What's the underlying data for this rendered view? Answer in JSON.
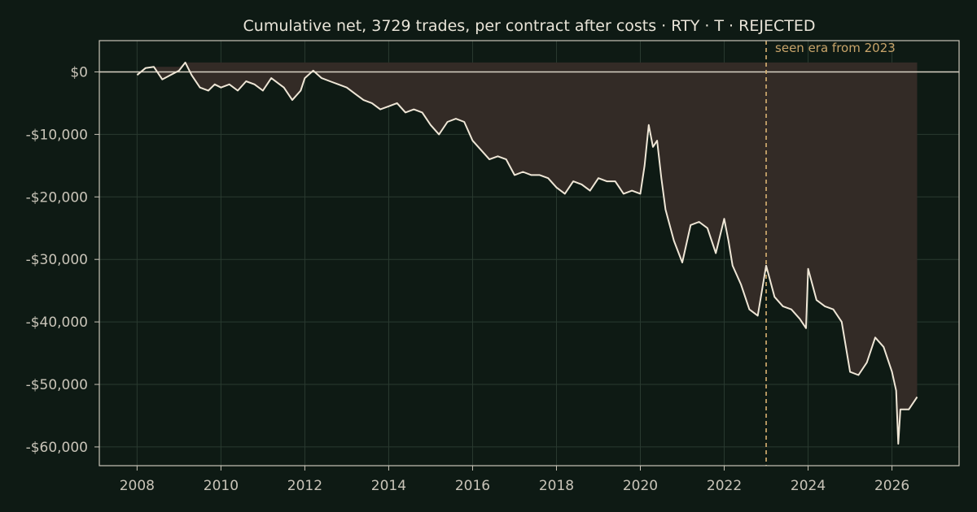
{
  "chart_data": {
    "type": "line",
    "title": "Cumulative net, 3729 trades, per contract after costs  ·  RTY · T · REJECTED",
    "xlabel": "",
    "ylabel": "",
    "xlim": [
      2007.1,
      2027.6
    ],
    "ylim": [
      -63000,
      5000
    ],
    "x_ticks": [
      2008,
      2010,
      2012,
      2014,
      2016,
      2018,
      2020,
      2022,
      2024,
      2026
    ],
    "x_tick_labels": [
      "2008",
      "2010",
      "2012",
      "2014",
      "2016",
      "2018",
      "2020",
      "2022",
      "2024",
      "2026"
    ],
    "y_ticks": [
      0,
      -10000,
      -20000,
      -30000,
      -40000,
      -50000,
      -60000
    ],
    "y_tick_labels": [
      "$0",
      "-$10,000",
      "-$20,000",
      "-$30,000",
      "-$40,000",
      "-$50,000",
      "-$60,000"
    ],
    "grid": true,
    "legend": "none",
    "colors": {
      "background": "#0e1a14",
      "line": "#efe6d6",
      "fill": "#332b26",
      "split": "#d9b272",
      "zero": "#d8d2c4"
    },
    "split_line": {
      "x": 2023.0,
      "label": "seen era from 2023"
    },
    "series": [
      {
        "values_x": [
          2008.0,
          2008.2,
          2008.4,
          2008.6,
          2008.8,
          2009.0,
          2009.15,
          2009.3,
          2009.5,
          2009.7,
          2009.85,
          2010.0,
          2010.2,
          2010.4,
          2010.6,
          2010.8,
          2011.0,
          2011.2,
          2011.4,
          2011.5,
          2011.7,
          2011.9,
          2012.0,
          2012.2,
          2012.4,
          2012.6,
          2012.8,
          2013.0,
          2013.2,
          2013.4,
          2013.6,
          2013.8,
          2014.0,
          2014.2,
          2014.4,
          2014.6,
          2014.8,
          2015.0,
          2015.2,
          2015.4,
          2015.6,
          2015.8,
          2016.0,
          2016.2,
          2016.4,
          2016.6,
          2016.8,
          2017.0,
          2017.2,
          2017.4,
          2017.6,
          2017.8,
          2018.0,
          2018.2,
          2018.4,
          2018.6,
          2018.8,
          2019.0,
          2019.2,
          2019.4,
          2019.6,
          2019.8,
          2020.0,
          2020.1,
          2020.2,
          2020.3,
          2020.4,
          2020.5,
          2020.6,
          2020.8,
          2021.0,
          2021.2,
          2021.4,
          2021.6,
          2021.8,
          2022.0,
          2022.1,
          2022.2,
          2022.4,
          2022.6,
          2022.8,
          2023.0,
          2023.1,
          2023.2,
          2023.4,
          2023.6,
          2023.8,
          2023.95,
          2024.0,
          2024.2,
          2024.4,
          2024.6,
          2024.8,
          2025.0,
          2025.2,
          2025.4,
          2025.6,
          2025.8,
          2026.0,
          2026.1,
          2026.15,
          2026.2,
          2026.4,
          2026.6
        ],
        "values_y": [
          -500,
          600,
          800,
          -1200,
          -500,
          200,
          1500,
          -500,
          -2500,
          -3000,
          -2000,
          -2500,
          -2000,
          -3000,
          -1500,
          -2000,
          -3000,
          -1000,
          -2000,
          -2500,
          -4500,
          -3000,
          -1000,
          200,
          -1000,
          -1500,
          -2000,
          -2500,
          -3500,
          -4500,
          -5000,
          -6000,
          -5500,
          -5000,
          -6500,
          -6000,
          -6500,
          -8500,
          -10000,
          -8000,
          -7500,
          -8000,
          -11000,
          -12500,
          -14000,
          -13500,
          -14000,
          -16500,
          -16000,
          -16500,
          -16500,
          -17000,
          -18500,
          -19500,
          -17500,
          -18000,
          -19000,
          -17000,
          -17500,
          -17500,
          -19500,
          -19000,
          -19500,
          -15000,
          -8500,
          -12000,
          -11000,
          -17000,
          -22000,
          -27000,
          -30500,
          -24500,
          -24000,
          -25000,
          -29000,
          -23500,
          -27000,
          -31000,
          -34000,
          -38000,
          -39000,
          -31000,
          -33500,
          -36000,
          -37500,
          -38000,
          -39500,
          -41000,
          -31500,
          -36500,
          -37500,
          -38000,
          -40000,
          -48000,
          -48500,
          -46500,
          -42500,
          -44000,
          -48000,
          -51000,
          -59500,
          -54000,
          -54000,
          -52000
        ]
      }
    ]
  }
}
